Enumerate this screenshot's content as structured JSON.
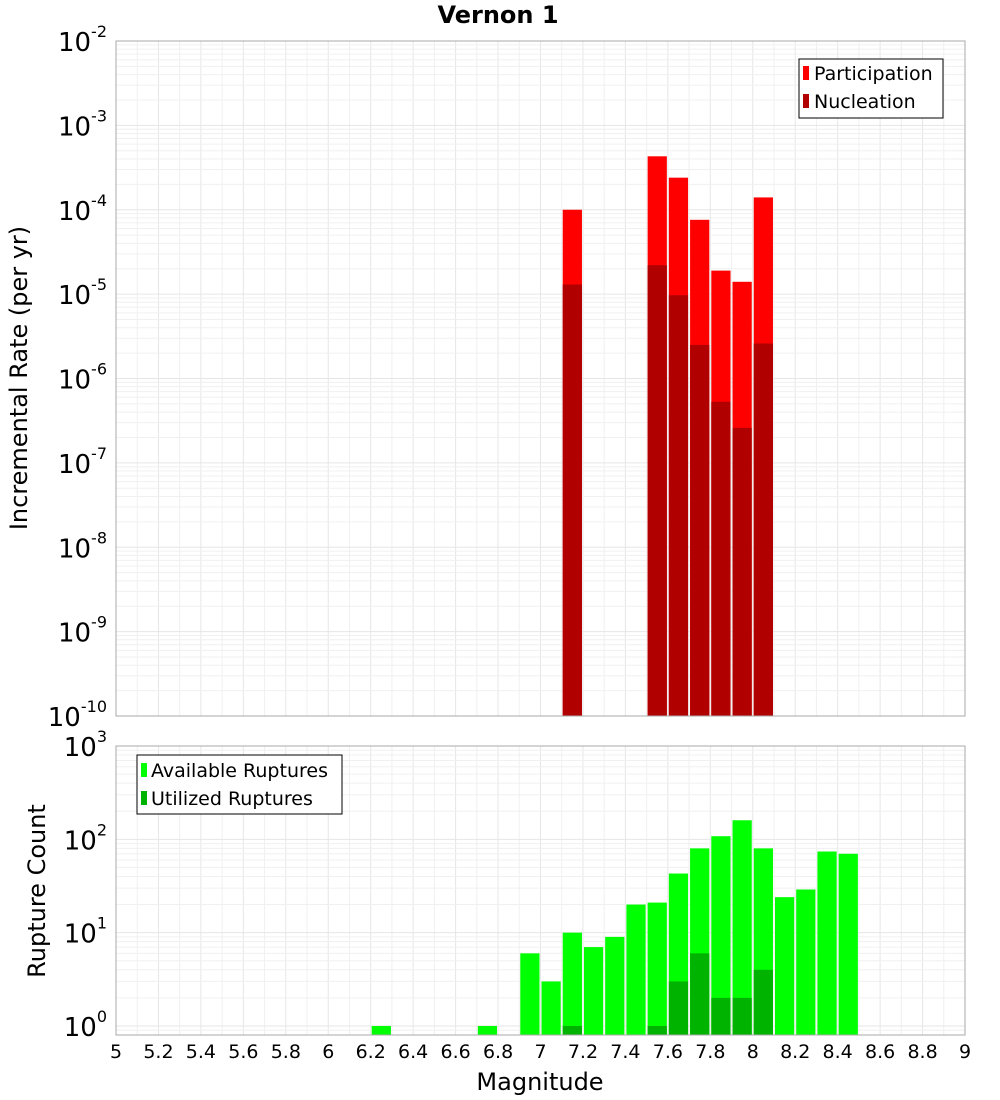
{
  "chart_data": [
    {
      "type": "bar",
      "title": "Vernon 1",
      "xlabel": "",
      "ylabel": "Incremental Rate (per yr)",
      "yscale": "log",
      "ylim": [
        1e-10,
        0.01
      ],
      "xlim": [
        5,
        9
      ],
      "grid": true,
      "legend_position": "top-right",
      "y_tick_labels": [
        {
          "base": "10",
          "exp": "-10",
          "value": 1e-10
        },
        {
          "base": "10",
          "exp": "-9",
          "value": 1e-09
        },
        {
          "base": "10",
          "exp": "-8",
          "value": 1e-08
        },
        {
          "base": "10",
          "exp": "-7",
          "value": 1e-07
        },
        {
          "base": "10",
          "exp": "-6",
          "value": 1e-06
        },
        {
          "base": "10",
          "exp": "-5",
          "value": 1e-05
        },
        {
          "base": "10",
          "exp": "-4",
          "value": 0.0001
        },
        {
          "base": "10",
          "exp": "-3",
          "value": 0.001
        },
        {
          "base": "10",
          "exp": "-2",
          "value": 0.01
        }
      ],
      "bar_width": 0.1,
      "series": [
        {
          "name": "Participation",
          "color": "#ff0000",
          "x": [
            7.15,
            7.55,
            7.65,
            7.75,
            7.85,
            7.95,
            8.05
          ],
          "values": [
            0.0001,
            0.00043,
            0.00024,
            7.6e-05,
            1.9e-05,
            1.4e-05,
            0.00014
          ]
        },
        {
          "name": "Nucleation",
          "color": "#b00000",
          "x": [
            7.15,
            7.55,
            7.65,
            7.75,
            7.85,
            7.95,
            8.05
          ],
          "values": [
            1.3e-05,
            2.2e-05,
            9.7e-06,
            2.5e-06,
            5.3e-07,
            2.6e-07,
            2.6e-06
          ]
        }
      ]
    },
    {
      "type": "bar",
      "title": "",
      "xlabel": "Magnitude",
      "ylabel": "Rupture Count",
      "yscale": "log",
      "ylim": [
        0.8,
        1000
      ],
      "xlim": [
        5,
        9
      ],
      "grid": true,
      "legend_position": "top-left",
      "y_tick_labels": [
        {
          "base": "10",
          "exp": "0",
          "value": 1
        },
        {
          "base": "10",
          "exp": "1",
          "value": 10
        },
        {
          "base": "10",
          "exp": "2",
          "value": 100
        },
        {
          "base": "10",
          "exp": "3",
          "value": 1000
        }
      ],
      "x_tick_labels": [
        "5",
        "5.2",
        "5.4",
        "5.6",
        "5.8",
        "6",
        "6.2",
        "6.4",
        "6.6",
        "6.8",
        "7",
        "7.2",
        "7.4",
        "7.6",
        "7.8",
        "8",
        "8.2",
        "8.4",
        "8.6",
        "8.8",
        "9"
      ],
      "bar_width": 0.1,
      "series": [
        {
          "name": "Available Ruptures",
          "color": "#00ff00",
          "x": [
            6.25,
            6.75,
            6.95,
            7.05,
            7.15,
            7.25,
            7.35,
            7.45,
            7.55,
            7.65,
            7.75,
            7.85,
            7.95,
            8.05,
            8.15,
            8.25,
            8.35,
            8.45
          ],
          "values": [
            1,
            1,
            6,
            3,
            10,
            7,
            9,
            20,
            21,
            43,
            80,
            108,
            160,
            80,
            24,
            29,
            74,
            70
          ]
        },
        {
          "name": "Utilized Ruptures",
          "color": "#00b300",
          "x": [
            7.15,
            7.55,
            7.65,
            7.75,
            7.85,
            7.95,
            8.05
          ],
          "values": [
            1,
            1,
            3,
            6,
            2,
            2,
            4
          ]
        }
      ]
    }
  ]
}
